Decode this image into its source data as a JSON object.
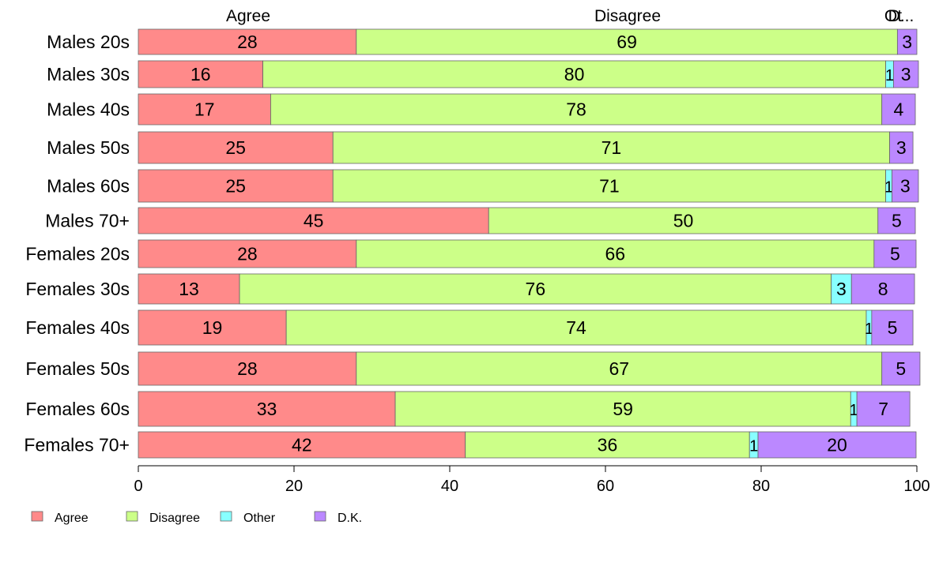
{
  "chart_data": {
    "type": "bar",
    "orientation": "horizontal",
    "stacked": true,
    "categories": [
      "Males 20s",
      "Males 30s",
      "Males 40s",
      "Males 50s",
      "Males 60s",
      "Males 70+",
      "Females 20s",
      "Females 30s",
      "Females 40s",
      "Females 50s",
      "Females 60s",
      "Females 70+"
    ],
    "series": [
      {
        "name": "Agree",
        "color": "#ff8a8a",
        "values": [
          28,
          16,
          17,
          25,
          25,
          45,
          28,
          13,
          19,
          28,
          33,
          42
        ],
        "labels": [
          "28",
          "16",
          "17",
          "25",
          "25",
          "45",
          "28",
          "13",
          "19",
          "28",
          "33",
          "42"
        ]
      },
      {
        "name": "Disagree",
        "color": "#ccff88",
        "values": [
          69.5,
          80,
          78.5,
          71.5,
          71,
          50,
          66.5,
          76,
          74.5,
          67.5,
          58.5,
          36.5
        ],
        "labels": [
          "69",
          "80",
          "78",
          "71",
          "71",
          "50",
          "66",
          "76",
          "74",
          "67",
          "59",
          "36"
        ]
      },
      {
        "name": "Other",
        "color": "#88ffff",
        "values": [
          0,
          1,
          0,
          0,
          0.8,
          0,
          0,
          2.6,
          0.7,
          0,
          0.8,
          1.1
        ],
        "labels": [
          "",
          "1",
          "",
          "",
          "1",
          "",
          "",
          "3",
          "1",
          "",
          "1",
          "1"
        ]
      },
      {
        "name": "D.K.",
        "color": "#bb88ff",
        "values": [
          2.5,
          3.2,
          4.3,
          3,
          3.4,
          4.8,
          5.4,
          8.1,
          5.3,
          4.9,
          6.8,
          20.3
        ],
        "labels": [
          "3",
          "3",
          "4",
          "3",
          "3",
          "5",
          "5",
          "8",
          "5",
          "5",
          "7",
          "20"
        ]
      }
    ],
    "top_labels": [
      "Agree",
      "Disagree",
      "Ot",
      "D..."
    ],
    "xlim": [
      0,
      100
    ],
    "xticks": [
      "0",
      "20",
      "40",
      "60",
      "80",
      "100"
    ],
    "legend": {
      "position": "bottom-left",
      "entries": [
        "Agree",
        "Disagree",
        "Other",
        "D.K."
      ]
    },
    "grid": false,
    "title": "",
    "xlabel": "",
    "ylabel": ""
  }
}
